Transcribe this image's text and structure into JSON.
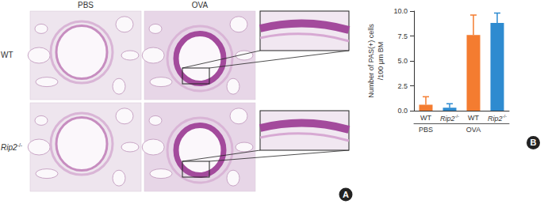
{
  "panel_a": {
    "panel_label": "A",
    "columns": [
      "PBS",
      "OVA"
    ],
    "rows": [
      "WT",
      "Rip2-/-"
    ]
  },
  "chart_data": {
    "type": "bar",
    "panel_label": "B",
    "y_label": "Number of PAS(+) cells\n/100 μm BM",
    "categories": [
      "WT",
      "Rip2-/-",
      "WT",
      "Rip2-/-"
    ],
    "groups": [
      "PBS",
      "OVA"
    ],
    "values": [
      0.6,
      0.3,
      7.6,
      8.8
    ],
    "errors": [
      0.8,
      0.4,
      2.0,
      1.0
    ],
    "colors": [
      "#f47c30",
      "#2e8bd0",
      "#f47c30",
      "#2e8bd0"
    ],
    "ylim": [
      0,
      10
    ],
    "yticks": [
      {
        "value": 0,
        "label": "0.0"
      },
      {
        "value": 2.5,
        "label": "2.5"
      },
      {
        "value": 5,
        "label": "5.0"
      },
      {
        "value": 7.5,
        "label": "7.5"
      },
      {
        "value": 10,
        "label": "10.0"
      }
    ],
    "grid": false
  }
}
